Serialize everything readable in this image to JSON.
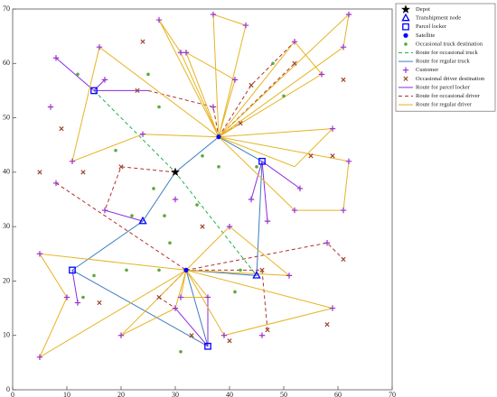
{
  "chart_data": {
    "type": "network",
    "xlim": [
      0,
      70
    ],
    "xticks": [
      0,
      10,
      20,
      30,
      40,
      50,
      60,
      70
    ],
    "ylim": [
      0,
      70
    ],
    "yticks": [
      0,
      10,
      20,
      30,
      40,
      50,
      60,
      70
    ],
    "legend": "upper right",
    "series": [
      {
        "name": "Depot",
        "kind": "point",
        "marker": "star",
        "color": "#000000",
        "x": [
          30
        ],
        "y": [
          40
        ]
      },
      {
        "name": "Transhipment node",
        "kind": "point",
        "marker": "triangle",
        "color": "#0000ff",
        "x": [
          24,
          45
        ],
        "y": [
          31,
          21
        ]
      },
      {
        "name": "Parcel locker",
        "kind": "point",
        "marker": "square",
        "color": "#0000ff",
        "x": [
          15,
          11,
          36,
          46
        ],
        "y": [
          55,
          22,
          8,
          42
        ]
      },
      {
        "name": "Satellite",
        "kind": "point",
        "marker": "dot",
        "color": "#0000ff",
        "x": [
          38,
          32
        ],
        "y": [
          46.5,
          22
        ]
      },
      {
        "name": "Occasional truck destination",
        "kind": "point",
        "marker": "dot",
        "color": "#5aaa3c",
        "x": [
          12,
          25,
          27,
          19,
          35,
          26,
          28,
          22,
          29,
          27,
          21,
          15,
          34,
          38,
          48,
          50,
          45,
          42,
          41,
          31,
          13
        ],
        "y": [
          58,
          58,
          52,
          44,
          43,
          37,
          32,
          32,
          27,
          22,
          22,
          21,
          34,
          41,
          60,
          54,
          41,
          22,
          18,
          7,
          17
        ]
      },
      {
        "name": "Route for occasional truck",
        "kind": "line",
        "dash": "4 3",
        "color": "#22b14c",
        "x": [
          15,
          30,
          45
        ],
        "y": [
          55,
          40,
          21
        ]
      },
      {
        "name": "Route for regular truck",
        "kind": "line",
        "color": "#3c7dbf",
        "x": [
          30,
          38,
          46,
          45,
          32,
          36,
          11,
          24,
          30
        ],
        "y": [
          40,
          46.5,
          42,
          21,
          22,
          8,
          22,
          31,
          40
        ]
      },
      {
        "name": "Customer",
        "kind": "point",
        "marker": "plus",
        "color": "#9933cc",
        "x": [
          8,
          16,
          27,
          37,
          43,
          62,
          61,
          52,
          57,
          41,
          37,
          17,
          7,
          11,
          24,
          31,
          32,
          8,
          17,
          30,
          31,
          36,
          40,
          52,
          53,
          44,
          47,
          59,
          62,
          61,
          58,
          51,
          59,
          46,
          39,
          20,
          30,
          12,
          10,
          5,
          5
        ],
        "y": [
          61,
          63,
          68,
          69,
          67,
          69,
          63,
          64,
          58,
          57,
          52,
          57,
          52,
          42,
          47,
          62,
          62,
          38,
          33,
          35,
          17,
          17,
          30,
          33,
          37,
          35,
          31,
          48,
          42,
          33,
          27,
          21,
          15,
          10,
          10,
          10,
          15,
          16,
          17,
          25,
          6
        ]
      },
      {
        "name": "Occasional driver destination",
        "kind": "point",
        "marker": "cross",
        "color": "#a0442d",
        "x": [
          24,
          9,
          13,
          5,
          20,
          23,
          35,
          44,
          42,
          52,
          55,
          61,
          59,
          46,
          47,
          58,
          61,
          27,
          33,
          40,
          16
        ],
        "y": [
          64,
          48,
          40,
          40,
          41,
          55,
          30,
          56,
          49,
          60,
          43,
          57,
          43,
          22,
          11,
          12,
          24,
          17,
          10,
          9,
          16
        ]
      },
      {
        "name": "Route for parcel locker",
        "kind": "line",
        "color": "#8a2be2",
        "x": [
          15,
          8,
          null,
          15,
          17,
          null,
          15,
          25,
          null,
          46,
          53,
          null,
          46,
          47,
          null,
          46,
          44,
          null,
          11,
          12,
          null,
          36,
          36,
          null,
          36,
          30,
          null,
          24,
          17
        ],
        "y": [
          55,
          61,
          null,
          55,
          57,
          null,
          55,
          55,
          null,
          42,
          37,
          null,
          42,
          31,
          null,
          42,
          35,
          null,
          22,
          16,
          null,
          8,
          17,
          null,
          8,
          15,
          null,
          31,
          33
        ]
      },
      {
        "name": "Route for occasional driver",
        "kind": "line",
        "dash": "4 3",
        "color": "#b03030",
        "x": [
          38,
          44,
          52,
          null,
          38,
          52,
          null,
          25,
          37,
          38,
          null,
          30,
          20,
          17,
          null,
          8,
          32,
          null,
          32,
          58,
          61,
          null,
          32,
          46,
          47,
          null,
          32,
          27,
          30,
          null,
          38,
          42
        ],
        "y": [
          46.5,
          56,
          64,
          null,
          46.5,
          60,
          null,
          55,
          52,
          46.5,
          null,
          40,
          41,
          33,
          null,
          38,
          22,
          null,
          22,
          27,
          24,
          null,
          22,
          22,
          11,
          null,
          22,
          17,
          15,
          null,
          46.5,
          49
        ]
      },
      {
        "name": "Route for regular driver",
        "kind": "line",
        "color": "#e6b422",
        "x": [
          38,
          27,
          31,
          38,
          null,
          38,
          37,
          43,
          38,
          null,
          38,
          62,
          61,
          38,
          null,
          38,
          57,
          52,
          38,
          null,
          38,
          41,
          32,
          38,
          null,
          38,
          24,
          11,
          16,
          38,
          null,
          38,
          59,
          52,
          38,
          null,
          38,
          62,
          61,
          52,
          38,
          null,
          32,
          5,
          10,
          5,
          32,
          null,
          32,
          20,
          30,
          32,
          null,
          32,
          39,
          59,
          32,
          null,
          32,
          51,
          40,
          32,
          null,
          32,
          31,
          36,
          32
        ],
        "y": [
          46.5,
          68,
          62,
          46.5,
          null,
          46.5,
          69,
          67,
          46.5,
          null,
          46.5,
          69,
          63,
          46.5,
          null,
          46.5,
          58,
          64,
          46.5,
          null,
          46.5,
          57,
          62,
          46.5,
          null,
          46.5,
          47,
          42,
          63,
          46.5,
          null,
          46.5,
          48,
          41,
          46.5,
          null,
          46.5,
          42,
          33,
          33,
          46.5,
          null,
          22,
          25,
          17,
          6,
          22,
          null,
          22,
          10,
          15,
          22,
          null,
          22,
          10,
          15,
          22,
          null,
          22,
          21,
          30,
          22,
          null,
          22,
          17,
          17,
          22
        ]
      }
    ]
  }
}
